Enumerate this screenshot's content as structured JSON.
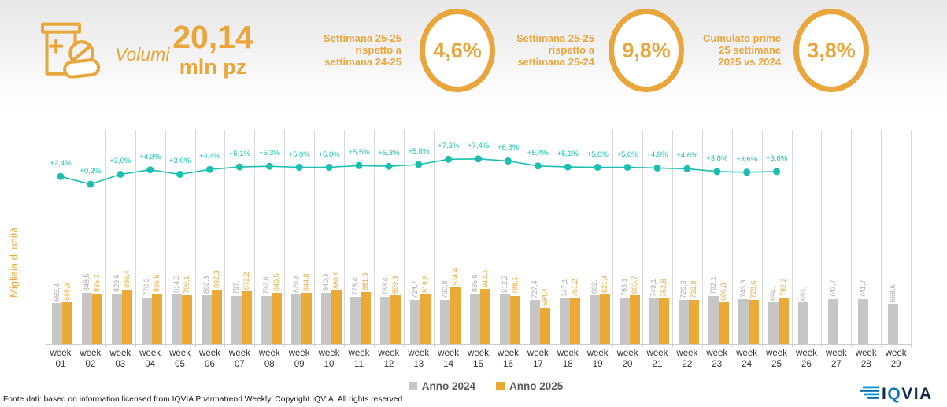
{
  "header": {
    "icon_label": "Volumi",
    "total_value": "20,14",
    "total_unit": "mln pz",
    "accent_color": "#e9a63c",
    "kpis": [
      {
        "label_lines": [
          "Settimana 25-25",
          "rispetto a",
          "settimana 24-25"
        ],
        "value": "4,6%"
      },
      {
        "label_lines": [
          "Settimana 25-25",
          "rispetto a",
          "settimana 25-24"
        ],
        "value": "9,8%"
      },
      {
        "label_lines": [
          "Cumulato prime",
          "25 settimane",
          "2025 vs 2024"
        ],
        "value": "3,8%"
      }
    ]
  },
  "chart_data": {
    "type": "bar",
    "ylabel": "Migliaia di unità",
    "xtick_word": "week",
    "weeks": [
      "01",
      "02",
      "03",
      "04",
      "05",
      "06",
      "07",
      "08",
      "09",
      "10",
      "11",
      "12",
      "13",
      "14",
      "15",
      "16",
      "17",
      "18",
      "19",
      "20",
      "21",
      "22",
      "23",
      "24",
      "25",
      "26",
      "27",
      "28",
      "29"
    ],
    "grid": "vertical",
    "series": [
      {
        "name": "Anno 2024",
        "color": "#c6c6c6",
        "values": [
          669.3,
          848.5,
          829.6,
          770.3,
          814.3,
          802.6,
          797,
          792.8,
          820.4,
          840.3,
          778.4,
          783.4,
          724.7,
          730.8,
          835.6,
          812.3,
          727.4,
          747.1,
          802,
          763.1,
          749.1,
          726.3,
          792.1,
          743.3,
          694,
          693,
          743.7,
          741.7,
          668.6
        ],
        "labels": [
          "669,3",
          "848,5",
          "829,6",
          "770,3",
          "814,3",
          "802,6",
          "797,",
          "792,8",
          "820,4",
          "840,3",
          "778,4",
          "783,4",
          "724,7",
          "730,8",
          "835,6",
          "812,3",
          "727,4",
          "747,1",
          "802,",
          "763,1",
          "749,1",
          "726,3",
          "792,1",
          "743,3",
          "694,",
          "693,",
          "743,7",
          "741,7",
          "668,6"
        ]
      },
      {
        "name": "Anno 2025",
        "color": "#eba937",
        "values": [
          685.3,
          835.3,
          896.4,
          835.5,
          799.1,
          892.3,
          872.2,
          840.5,
          844.8,
          880.9,
          861.3,
          809.3,
          816.8,
          934.4,
          912.1,
          788.1,
          594.4,
          751.2,
          821.4,
          803.7,
          753.8,
          732.8,
          686.3,
          728.6,
          762.2,
          null,
          null,
          null,
          null
        ],
        "labels": [
          "685,3",
          "835,3",
          "896,4",
          "835,5",
          "799,1",
          "892,3",
          "872,2",
          "840,5",
          "844,8",
          "880,9",
          "861,3",
          "809,3",
          "816,8",
          "934,4",
          "912,1",
          "788,1",
          "594,4",
          "751,2",
          "821,4",
          "803,7",
          "753,8",
          "732,8",
          "686,3",
          "728,6",
          "762,2",
          null,
          null,
          null,
          null
        ]
      }
    ],
    "trend_line": {
      "color": "#1bbfb2",
      "pct_values": [
        2.4,
        0.2,
        3.0,
        4.3,
        3.0,
        4.4,
        5.1,
        5.3,
        5.0,
        5.0,
        5.5,
        5.3,
        5.8,
        7.3,
        7.4,
        6.8,
        5.4,
        5.1,
        5.0,
        5.0,
        4.8,
        4.6,
        3.8,
        3.6,
        3.8
      ],
      "labels": [
        "+2,4%",
        "+0,2%",
        "+3,0%",
        "+4,3%",
        "+3,0%",
        "+4,4%",
        "+5,1%",
        "+5,3%",
        "+5,0%",
        "+5,0%",
        "+5,5%",
        "+5,3%",
        "+5,8%",
        "+7,3%",
        "+7,4%",
        "+6,8%",
        "+5,4%",
        "+5,1%",
        "+5,0%",
        "+5,0%",
        "+4,8%",
        "+4,6%",
        "+3,8%",
        "+3,6%",
        "+3,8%"
      ]
    }
  },
  "legend": [
    {
      "label": "Anno 2024",
      "color": "#c6c6c6"
    },
    {
      "label": "Anno 2025",
      "color": "#eba937"
    }
  ],
  "footer": {
    "source": "Fonte dati: based on information licensed from IQVIA Pharmatrend Weekly. Copyright IQVIA. All rights reserved.",
    "logo_parts": [
      "I",
      "Q",
      "VIA"
    ]
  }
}
